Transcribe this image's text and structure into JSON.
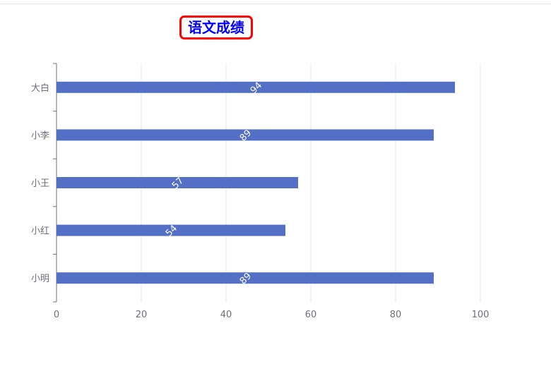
{
  "chart_data": {
    "type": "bar",
    "orientation": "horizontal",
    "title": "语文成绩",
    "categories": [
      "小明",
      "小红",
      "小王",
      "小李",
      "大白"
    ],
    "values": [
      89,
      54,
      57,
      89,
      94
    ],
    "xlim": [
      0,
      100
    ],
    "xticks": [
      "0",
      "20",
      "40",
      "60",
      "80",
      "100"
    ],
    "bar_color": "#5470c6",
    "label_color": "#ffffff",
    "title_color": "#0000ff",
    "title_border_color": "#ff0000",
    "data_labels": true,
    "grid": true
  }
}
